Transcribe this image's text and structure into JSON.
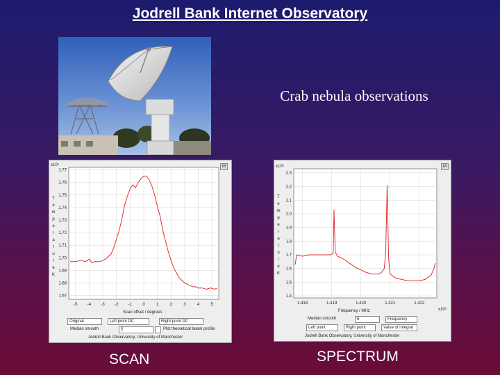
{
  "slide": {
    "title": "Jodrell Bank Internet Observatory",
    "subtitle": "Crab nebula observations",
    "scan_caption": "SCAN",
    "spectrum_caption": "SPECTRUM"
  },
  "scan_panel": {
    "exponent": "x10³",
    "close_label": "M",
    "y_axis_letters": [
      "T",
      "e",
      "m",
      "p",
      "e",
      "r",
      "a",
      "t",
      "u",
      "r",
      "e",
      "",
      "K"
    ],
    "x_label": "Scan offset / degrees",
    "mode_select": "Original",
    "left_point_label": "Left point DC",
    "right_point_label": "Right point DC",
    "median_label": "Median smooth",
    "median_value": "5",
    "beam_label": "Plot theoretical beam profile",
    "footer": "Jodrell Bank Observatory, University of Manchester"
  },
  "spectrum_panel": {
    "exponent": "x10³",
    "close_label": "M",
    "x_exponent": "x10³",
    "y_axis_letters": [
      "T",
      "e",
      "m",
      "p",
      "e",
      "r",
      "a",
      "t",
      "u",
      "r",
      "e",
      "",
      "K"
    ],
    "x_label": "Frequency / MHz",
    "median_label": "Median smooth",
    "median_value": "5",
    "mode_select": "Frequency",
    "left_point_label": "Left point",
    "right_point_label": "Right point",
    "integral_label": "Value of integral",
    "footer": "Jodrell Bank Observatory, University of Manchester"
  },
  "chart_data": [
    {
      "type": "line",
      "title": "SCAN",
      "xlabel": "Scan offset / degrees",
      "ylabel": "Temperature / K",
      "xlim": [
        -5.5,
        5.5
      ],
      "ylim": [
        1.667,
        1.772
      ],
      "x_ticks": [
        "-5",
        "-4",
        "-3",
        "-2",
        "-1",
        "0",
        "1",
        "2",
        "3",
        "4",
        "5"
      ],
      "x_tick_values": [
        -5,
        -4,
        -3,
        -2,
        -1,
        0,
        1,
        2,
        3,
        4,
        5
      ],
      "y_ticks": [
        "1.67",
        "1.68",
        "1.69",
        "1.70",
        "1.71",
        "1.72",
        "1.73",
        "1.74",
        "1.75",
        "1.76",
        "1.77"
      ],
      "y_tick_values": [
        1.67,
        1.68,
        1.69,
        1.7,
        1.71,
        1.72,
        1.73,
        1.74,
        1.75,
        1.76,
        1.77
      ],
      "series": [
        {
          "name": "scan",
          "x": [
            -5.4,
            -5.0,
            -4.6,
            -4.3,
            -4.0,
            -3.8,
            -3.6,
            -3.4,
            -3.2,
            -3.0,
            -2.8,
            -2.6,
            -2.4,
            -2.2,
            -2.0,
            -1.8,
            -1.6,
            -1.4,
            -1.2,
            -1.0,
            -0.8,
            -0.6,
            -0.4,
            -0.2,
            0.0,
            0.2,
            0.4,
            0.6,
            0.8,
            1.0,
            1.2,
            1.4,
            1.6,
            1.8,
            2.0,
            2.2,
            2.4,
            2.6,
            2.8,
            3.0,
            3.2,
            3.4,
            3.6,
            3.8,
            4.0,
            4.3,
            4.6,
            4.9,
            5.2,
            5.4
          ],
          "y": [
            1.697,
            1.697,
            1.698,
            1.697,
            1.699,
            1.696,
            1.697,
            1.697,
            1.697,
            1.698,
            1.699,
            1.701,
            1.703,
            1.708,
            1.715,
            1.722,
            1.731,
            1.742,
            1.749,
            1.755,
            1.758,
            1.756,
            1.76,
            1.763,
            1.765,
            1.765,
            1.762,
            1.757,
            1.75,
            1.741,
            1.733,
            1.722,
            1.713,
            1.705,
            1.698,
            1.692,
            1.688,
            1.684,
            1.682,
            1.68,
            1.679,
            1.678,
            1.677,
            1.677,
            1.676,
            1.676,
            1.675,
            1.676,
            1.675,
            1.676
          ]
        }
      ]
    },
    {
      "type": "line",
      "title": "SPECTRUM",
      "xlabel": "Frequency / MHz",
      "ylabel": "Temperature / K",
      "xlim": [
        1.4177,
        1.4226
      ],
      "ylim": [
        1.385,
        2.33
      ],
      "x_ticks": [
        "1.418",
        "1.419",
        "1.420",
        "1.421",
        "1.422"
      ],
      "x_tick_values": [
        1.418,
        1.419,
        1.42,
        1.421,
        1.422
      ],
      "y_ticks": [
        "1.4",
        "1.5",
        "1.6",
        "1.7",
        "1.8",
        "1.9",
        "2.0",
        "2.1",
        "2.2",
        "2.3"
      ],
      "y_tick_values": [
        1.4,
        1.5,
        1.6,
        1.7,
        1.8,
        1.9,
        2.0,
        2.1,
        2.2,
        2.3
      ],
      "series": [
        {
          "name": "spectrum",
          "x": [
            1.41775,
            1.4178,
            1.418,
            1.4182,
            1.4184,
            1.4186,
            1.4188,
            1.41895,
            1.41905,
            1.41908,
            1.41912,
            1.4192,
            1.4194,
            1.4196,
            1.4198,
            1.42,
            1.4202,
            1.4204,
            1.4206,
            1.4207,
            1.4208,
            1.42085,
            1.4209,
            1.42095,
            1.421,
            1.4212,
            1.4214,
            1.4216,
            1.4218,
            1.422,
            1.4222,
            1.4224,
            1.4225,
            1.42255
          ],
          "y": [
            1.63,
            1.7,
            1.69,
            1.7,
            1.7,
            1.7,
            1.7,
            1.7,
            1.71,
            2.03,
            1.72,
            1.69,
            1.67,
            1.64,
            1.61,
            1.59,
            1.57,
            1.56,
            1.56,
            1.57,
            1.6,
            1.72,
            2.21,
            1.68,
            1.56,
            1.53,
            1.52,
            1.51,
            1.51,
            1.51,
            1.52,
            1.55,
            1.6,
            1.64
          ]
        }
      ]
    }
  ]
}
